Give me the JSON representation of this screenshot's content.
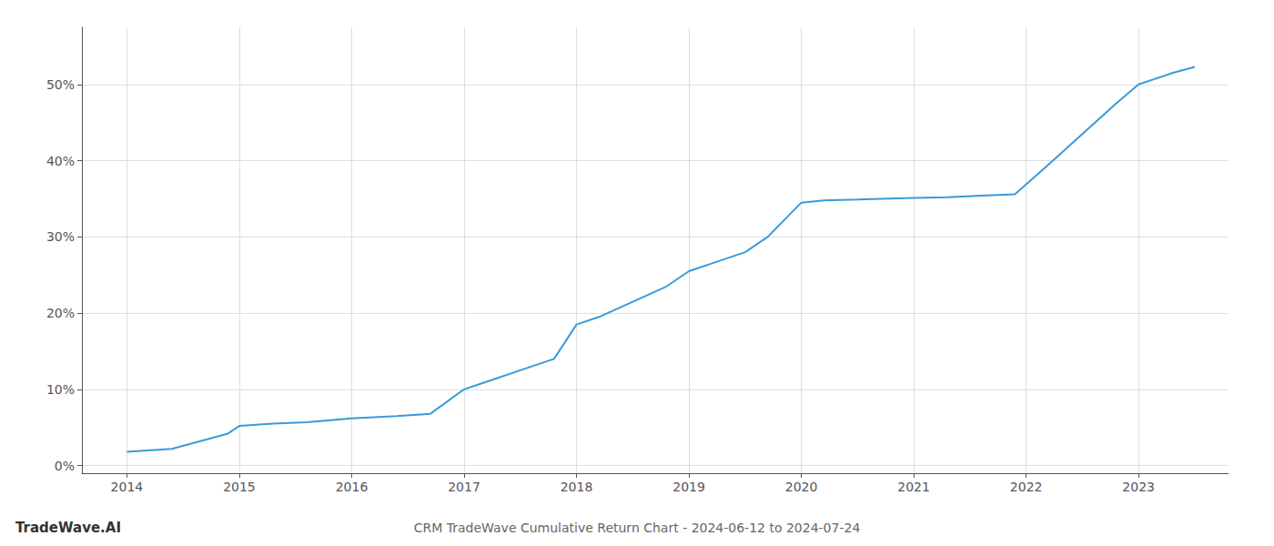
{
  "chart_data": {
    "type": "line",
    "title": "CRM TradeWave Cumulative Return Chart - 2024-06-12 to 2024-07-24",
    "annotations": [
      "TradeWave.AI"
    ],
    "x": [
      2014.0,
      2014.4,
      2014.9,
      2015.0,
      2015.3,
      2015.6,
      2016.0,
      2016.4,
      2016.7,
      2017.0,
      2017.2,
      2017.5,
      2017.8,
      2018.0,
      2018.2,
      2018.5,
      2018.8,
      2019.0,
      2019.2,
      2019.5,
      2019.7,
      2020.0,
      2020.2,
      2020.5,
      2020.7,
      2021.0,
      2021.3,
      2021.6,
      2021.9,
      2022.2,
      2022.5,
      2022.8,
      2023.0,
      2023.3,
      2023.5
    ],
    "values": [
      0.018,
      0.022,
      0.042,
      0.052,
      0.055,
      0.057,
      0.062,
      0.065,
      0.068,
      0.1,
      0.11,
      0.125,
      0.14,
      0.185,
      0.195,
      0.215,
      0.235,
      0.255,
      0.265,
      0.28,
      0.3,
      0.345,
      0.348,
      0.349,
      0.35,
      0.351,
      0.352,
      0.354,
      0.356,
      0.395,
      0.435,
      0.475,
      0.5,
      0.515,
      0.523
    ],
    "color": "#3a9ad9",
    "xlim": [
      2013.6,
      2023.8
    ],
    "ylim": [
      -0.01,
      0.575
    ],
    "xticks": [
      2014,
      2015,
      2016,
      2017,
      2018,
      2019,
      2020,
      2021,
      2022,
      2023
    ],
    "yticks": [
      {
        "value": 0.0,
        "label": "0%"
      },
      {
        "value": 0.1,
        "label": "10%"
      },
      {
        "value": 0.2,
        "label": "20%"
      },
      {
        "value": 0.3,
        "label": "30%"
      },
      {
        "value": 0.4,
        "label": "40%"
      },
      {
        "value": 0.5,
        "label": "50%"
      }
    ],
    "grid": true
  }
}
